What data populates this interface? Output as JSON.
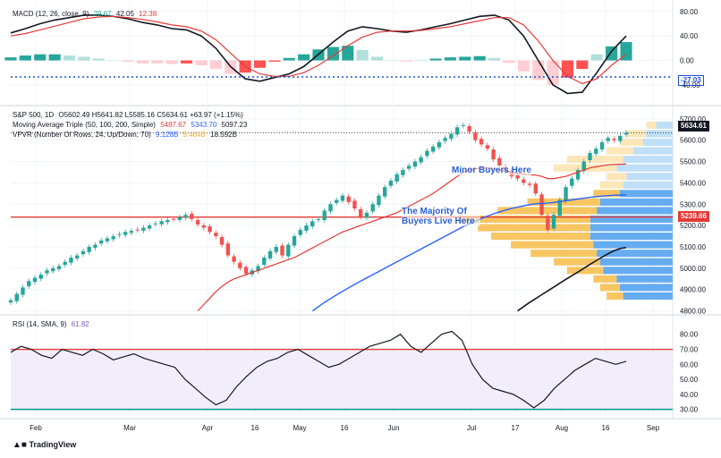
{
  "chart_data": [
    {
      "type": "line",
      "panel": "macd",
      "legend": {
        "label": "MACD (12, 26, close, 9)",
        "v1": "29.67",
        "v2": "42.05",
        "v3": "12.38"
      },
      "yticks": [
        80,
        40,
        0,
        -40
      ],
      "ylim": [
        -65,
        90
      ],
      "level_label": "-27.03",
      "level": -27.03,
      "series": [
        {
          "name": "MACD",
          "color": "#131722",
          "values": [
            45,
            52,
            60,
            66,
            70,
            74,
            74,
            72,
            68,
            62,
            58,
            52,
            50,
            40,
            20,
            -10,
            -30,
            -34,
            -28,
            -22,
            -10,
            10,
            30,
            48,
            55,
            52,
            48,
            46,
            50,
            55,
            60,
            66,
            72,
            74,
            66,
            40,
            0,
            -40,
            -54,
            -52,
            -20,
            15,
            40
          ]
        },
        {
          "name": "Signal",
          "color": "#e53935",
          "values": [
            40,
            44,
            50,
            56,
            62,
            68,
            71,
            72,
            70,
            67,
            63,
            58,
            55,
            48,
            34,
            12,
            -10,
            -22,
            -26,
            -26,
            -20,
            -8,
            8,
            24,
            38,
            46,
            48,
            48,
            49,
            52,
            55,
            60,
            65,
            70,
            70,
            58,
            32,
            0,
            -26,
            -38,
            -30,
            -8,
            10
          ]
        }
      ],
      "histogram": [
        5,
        8,
        10,
        10,
        8,
        6,
        3,
        0,
        -2,
        -5,
        -5,
        -6,
        -5,
        -8,
        -14,
        -22,
        -20,
        -12,
        -2,
        4,
        10,
        18,
        22,
        24,
        17,
        6,
        0,
        -2,
        1,
        3,
        5,
        6,
        7,
        4,
        -4,
        -18,
        -32,
        -40,
        -28,
        -14,
        10,
        23,
        30
      ]
    },
    {
      "type": "candlestick",
      "panel": "price",
      "legend": {
        "symbol": "S&P 500, 1D",
        "ohlc": "O5602.49  H5641.82  L5585.16  C5634.61  +63.97 (+1.15%)",
        "ma_label": "Moving Average Triple (50, 100, 200, Simple)",
        "ma50": "5487.67",
        "ma100": "5343.70",
        "ma200": "5097.23",
        "vpvr_label": "VPVR (Number Of Rows, 24, Up/Down, 70)",
        "vp1": "9.128B",
        "vp2": "9.464B",
        "vp3": "18.592B"
      },
      "yticks": [
        5700,
        5600,
        5500,
        5400,
        5300,
        5200,
        5100,
        5000,
        4900,
        4800
      ],
      "ylim": [
        4790,
        5720
      ],
      "current_price": "5634.61",
      "current_value": 5634.61,
      "level_label": "5239.66",
      "level": 5239.66,
      "closes": [
        4850,
        4880,
        4910,
        4940,
        4955,
        4970,
        4990,
        5000,
        5010,
        5030,
        5050,
        5060,
        5080,
        5100,
        5110,
        5130,
        5140,
        5150,
        5160,
        5170,
        5175,
        5180,
        5190,
        5200,
        5210,
        5220,
        5225,
        5230,
        5240,
        5250,
        5230,
        5205,
        5190,
        5170,
        5150,
        5110,
        5060,
        5030,
        5000,
        4975,
        4990,
        5010,
        5050,
        5080,
        5100,
        5060,
        5110,
        5150,
        5180,
        5200,
        5220,
        5230,
        5270,
        5300,
        5320,
        5340,
        5310,
        5280,
        5240,
        5260,
        5300,
        5340,
        5380,
        5410,
        5440,
        5460,
        5480,
        5500,
        5520,
        5550,
        5570,
        5590,
        5610,
        5630,
        5660,
        5670,
        5640,
        5600,
        5580,
        5560,
        5510,
        5480,
        5460,
        5430,
        5420,
        5400,
        5390,
        5350,
        5250,
        5180,
        5250,
        5320,
        5380,
        5420,
        5460,
        5500,
        5540,
        5560,
        5590,
        5610,
        5600,
        5620,
        5635
      ],
      "ma50": [
        null,
        null,
        null,
        null,
        null,
        null,
        null,
        null,
        null,
        null,
        null,
        null,
        null,
        null,
        null,
        null,
        null,
        null,
        null,
        null,
        null,
        null,
        null,
        null,
        null,
        null,
        null,
        null,
        null,
        null,
        null,
        4800,
        4830,
        4860,
        4890,
        4915,
        4935,
        4950,
        4960,
        4970,
        4980,
        4990,
        5000,
        5010,
        5020,
        5030,
        5040,
        5050,
        5065,
        5080,
        5095,
        5110,
        5125,
        5140,
        5155,
        5170,
        5180,
        5190,
        5200,
        5210,
        5220,
        5230,
        5240,
        5250,
        5260,
        5275,
        5290,
        5305,
        5320,
        5335,
        5350,
        5370,
        5390,
        5410,
        5430,
        5450,
        5460,
        5465,
        5470,
        5470,
        5465,
        5460,
        5455,
        5450,
        5445,
        5440,
        5438,
        5436,
        5430,
        5420,
        5420,
        5425,
        5430,
        5440,
        5450,
        5460,
        5470,
        5475,
        5480,
        5484,
        5486,
        5487,
        5488
      ],
      "ma100": [
        null,
        null,
        null,
        null,
        null,
        null,
        null,
        null,
        null,
        null,
        null,
        null,
        null,
        null,
        null,
        null,
        null,
        null,
        null,
        null,
        null,
        null,
        null,
        null,
        null,
        null,
        null,
        null,
        null,
        null,
        null,
        null,
        null,
        null,
        null,
        null,
        null,
        null,
        null,
        null,
        null,
        null,
        null,
        null,
        null,
        null,
        null,
        null,
        null,
        null,
        4800,
        4820,
        4840,
        4858,
        4875,
        4892,
        4908,
        4924,
        4940,
        4955,
        4970,
        4985,
        5000,
        5015,
        5030,
        5045,
        5060,
        5075,
        5090,
        5105,
        5120,
        5135,
        5150,
        5165,
        5180,
        5195,
        5208,
        5220,
        5232,
        5244,
        5255,
        5264,
        5272,
        5280,
        5286,
        5292,
        5298,
        5302,
        5304,
        5305,
        5308,
        5312,
        5316,
        5320,
        5324,
        5328,
        5332,
        5335,
        5338,
        5340,
        5342,
        5343,
        5344
      ],
      "ma200": [
        null,
        null,
        null,
        null,
        null,
        null,
        null,
        null,
        null,
        null,
        null,
        null,
        null,
        null,
        null,
        null,
        null,
        null,
        null,
        null,
        null,
        null,
        null,
        null,
        null,
        null,
        null,
        null,
        null,
        null,
        null,
        null,
        null,
        null,
        null,
        null,
        null,
        null,
        null,
        null,
        null,
        null,
        null,
        null,
        null,
        null,
        null,
        null,
        null,
        null,
        null,
        null,
        null,
        null,
        null,
        null,
        null,
        null,
        null,
        null,
        null,
        null,
        null,
        null,
        null,
        null,
        null,
        null,
        null,
        null,
        null,
        null,
        null,
        null,
        null,
        null,
        null,
        null,
        null,
        null,
        null,
        null,
        null,
        null,
        4800,
        4820,
        4840,
        4858,
        4876,
        4894,
        4912,
        4930,
        4948,
        4965,
        4982,
        5000,
        5018,
        5035,
        5052,
        5068,
        5082,
        5092,
        5097
      ],
      "volume_profile": [
        {
          "price": 4870,
          "up": 25,
          "down": 75
        },
        {
          "price": 4910,
          "up": 30,
          "down": 80
        },
        {
          "price": 4950,
          "up": 35,
          "down": 85
        },
        {
          "price": 4990,
          "up": 55,
          "down": 105
        },
        {
          "price": 5030,
          "up": 70,
          "down": 110
        },
        {
          "price": 5070,
          "up": 100,
          "down": 115
        },
        {
          "price": 5110,
          "up": 125,
          "down": 120
        },
        {
          "price": 5150,
          "up": 150,
          "down": 125
        },
        {
          "price": 5190,
          "up": 170,
          "down": 125
        },
        {
          "price": 5230,
          "up": 200,
          "down": 125
        },
        {
          "price": 5270,
          "up": 150,
          "down": 115
        },
        {
          "price": 5310,
          "up": 110,
          "down": 110
        },
        {
          "price": 5350,
          "up": 40,
          "down": 80
        },
        {
          "price": 5390,
          "up": 35,
          "down": 75
        },
        {
          "price": 5430,
          "up": 30,
          "down": 70
        },
        {
          "price": 5470,
          "up": 95,
          "down": 85
        },
        {
          "price": 5510,
          "up": 85,
          "down": 75
        },
        {
          "price": 5550,
          "up": 40,
          "down": 60
        },
        {
          "price": 5590,
          "up": 35,
          "down": 45
        },
        {
          "price": 5630,
          "up": 30,
          "down": 40
        },
        {
          "price": 5670,
          "up": 15,
          "down": 25
        }
      ],
      "annotations": [
        {
          "text": "Minor Buyers Here"
        },
        {
          "text": "The Majority Of Buyers Live Here"
        }
      ]
    },
    {
      "type": "line",
      "panel": "rsi",
      "legend": {
        "label": "RSI (14, SMA, 9)",
        "value": "61.82"
      },
      "yticks": [
        80,
        70,
        60,
        50,
        40,
        30
      ],
      "ylim": [
        25,
        87
      ],
      "bands": [
        70,
        30
      ],
      "series": [
        {
          "name": "RSI",
          "color": "#131722",
          "values": [
            68,
            72,
            70,
            66,
            64,
            70,
            68,
            66,
            70,
            67,
            63,
            65,
            67,
            64,
            62,
            60,
            58,
            50,
            44,
            38,
            33,
            36,
            45,
            52,
            58,
            62,
            64,
            68,
            70,
            66,
            62,
            58,
            60,
            64,
            68,
            72,
            74,
            76,
            80,
            72,
            68,
            74,
            80,
            82,
            76,
            60,
            50,
            44,
            42,
            40,
            36,
            31,
            36,
            44,
            50,
            56,
            60,
            64,
            62,
            60,
            62
          ]
        }
      ],
      "xticks": [
        "Feb",
        "Mar",
        "Apr",
        "16",
        "May",
        "16",
        "Jun",
        "Jul",
        "17",
        "Aug",
        "16",
        "Sep"
      ]
    }
  ],
  "branding": "TradingView"
}
